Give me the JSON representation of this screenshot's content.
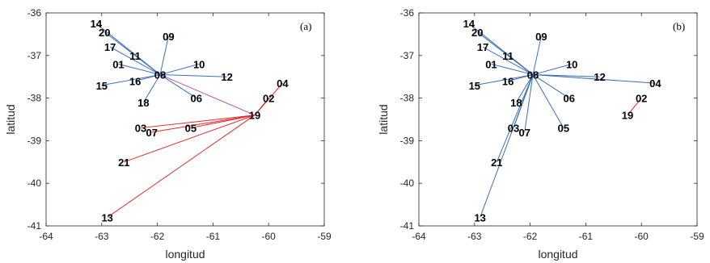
{
  "chart_data": [
    {
      "type": "scatter",
      "panel_label": "(a)",
      "xlabel": "longitud",
      "ylabel": "latitud",
      "xlim": [
        -64,
        -59
      ],
      "ylim": [
        -41,
        -36
      ],
      "xticks": [
        "-64",
        "-63",
        "-62",
        "-61",
        "-60",
        "-59"
      ],
      "yticks": [
        "-36",
        "-37",
        "-38",
        "-39",
        "-40",
        "-41"
      ],
      "colors": {
        "hub_08": "#3b6fb6",
        "hub_19": "#e8262a",
        "cross": "#b154b0"
      },
      "points": [
        {
          "id": "01",
          "x": -62.7,
          "y": -37.2
        },
        {
          "id": "02",
          "x": -60.0,
          "y": -38.0
        },
        {
          "id": "03",
          "x": -62.3,
          "y": -38.7
        },
        {
          "id": "04",
          "x": -59.75,
          "y": -37.65
        },
        {
          "id": "05",
          "x": -61.4,
          "y": -38.7
        },
        {
          "id": "06",
          "x": -61.3,
          "y": -38.0
        },
        {
          "id": "07",
          "x": -62.1,
          "y": -38.8
        },
        {
          "id": "08",
          "x": -61.95,
          "y": -37.45
        },
        {
          "id": "09",
          "x": -61.8,
          "y": -36.55
        },
        {
          "id": "10",
          "x": -61.25,
          "y": -37.2
        },
        {
          "id": "11",
          "x": -62.4,
          "y": -37.0
        },
        {
          "id": "12",
          "x": -60.75,
          "y": -37.5
        },
        {
          "id": "13",
          "x": -62.9,
          "y": -40.8
        },
        {
          "id": "14",
          "x": -63.1,
          "y": -36.25
        },
        {
          "id": "15",
          "x": -63.0,
          "y": -37.7
        },
        {
          "id": "16",
          "x": -62.4,
          "y": -37.6
        },
        {
          "id": "17",
          "x": -62.85,
          "y": -36.8
        },
        {
          "id": "18",
          "x": -62.25,
          "y": -38.1
        },
        {
          "id": "19",
          "x": -60.25,
          "y": -38.4
        },
        {
          "id": "20",
          "x": -62.95,
          "y": -36.45
        },
        {
          "id": "21",
          "x": -62.6,
          "y": -39.5
        }
      ],
      "edges": [
        {
          "from": "08",
          "to": "01",
          "group": "hub_08"
        },
        {
          "from": "08",
          "to": "06",
          "group": "hub_08"
        },
        {
          "from": "08",
          "to": "09",
          "group": "hub_08"
        },
        {
          "from": "08",
          "to": "10",
          "group": "hub_08"
        },
        {
          "from": "08",
          "to": "11",
          "group": "hub_08"
        },
        {
          "from": "08",
          "to": "12",
          "group": "hub_08"
        },
        {
          "from": "08",
          "to": "14",
          "group": "hub_08"
        },
        {
          "from": "08",
          "to": "15",
          "group": "hub_08"
        },
        {
          "from": "08",
          "to": "16",
          "group": "hub_08"
        },
        {
          "from": "08",
          "to": "17",
          "group": "hub_08"
        },
        {
          "from": "08",
          "to": "18",
          "group": "hub_08"
        },
        {
          "from": "08",
          "to": "20",
          "group": "hub_08"
        },
        {
          "from": "08",
          "to": "19",
          "group": "cross"
        },
        {
          "from": "19",
          "to": "02",
          "group": "hub_19"
        },
        {
          "from": "19",
          "to": "03",
          "group": "hub_19"
        },
        {
          "from": "19",
          "to": "04",
          "group": "hub_19"
        },
        {
          "from": "19",
          "to": "05",
          "group": "hub_19"
        },
        {
          "from": "19",
          "to": "07",
          "group": "hub_19"
        },
        {
          "from": "19",
          "to": "13",
          "group": "hub_19"
        },
        {
          "from": "19",
          "to": "21",
          "group": "hub_19"
        }
      ]
    },
    {
      "type": "scatter",
      "panel_label": "(b)",
      "xlabel": "longitud",
      "ylabel": "latitud",
      "xlim": [
        -64,
        -59
      ],
      "ylim": [
        -41,
        -36
      ],
      "xticks": [
        "-64",
        "-63",
        "-62",
        "-61",
        "-60",
        "-59"
      ],
      "yticks": [
        "-36",
        "-37",
        "-38",
        "-39",
        "-40",
        "-41"
      ],
      "colors": {
        "hub_08": "#3b6fb6",
        "hub_19": "#e8262a",
        "cross": "#b154b0"
      },
      "points": [
        {
          "id": "01",
          "x": -62.7,
          "y": -37.2
        },
        {
          "id": "02",
          "x": -60.0,
          "y": -38.0
        },
        {
          "id": "03",
          "x": -62.3,
          "y": -38.7
        },
        {
          "id": "04",
          "x": -59.75,
          "y": -37.65
        },
        {
          "id": "05",
          "x": -61.4,
          "y": -38.7
        },
        {
          "id": "06",
          "x": -61.3,
          "y": -38.0
        },
        {
          "id": "07",
          "x": -62.1,
          "y": -38.8
        },
        {
          "id": "08",
          "x": -61.95,
          "y": -37.45
        },
        {
          "id": "09",
          "x": -61.8,
          "y": -36.55
        },
        {
          "id": "10",
          "x": -61.25,
          "y": -37.2
        },
        {
          "id": "11",
          "x": -62.4,
          "y": -37.0
        },
        {
          "id": "12",
          "x": -60.75,
          "y": -37.5
        },
        {
          "id": "13",
          "x": -62.9,
          "y": -40.8
        },
        {
          "id": "14",
          "x": -63.1,
          "y": -36.25
        },
        {
          "id": "15",
          "x": -63.0,
          "y": -37.7
        },
        {
          "id": "16",
          "x": -62.4,
          "y": -37.6
        },
        {
          "id": "17",
          "x": -62.85,
          "y": -36.8
        },
        {
          "id": "18",
          "x": -62.25,
          "y": -38.1
        },
        {
          "id": "19",
          "x": -60.25,
          "y": -38.4
        },
        {
          "id": "20",
          "x": -62.95,
          "y": -36.45
        },
        {
          "id": "21",
          "x": -62.6,
          "y": -39.5
        }
      ],
      "edges": [
        {
          "from": "08",
          "to": "01",
          "group": "hub_08"
        },
        {
          "from": "08",
          "to": "03",
          "group": "hub_08"
        },
        {
          "from": "08",
          "to": "04",
          "group": "hub_08"
        },
        {
          "from": "08",
          "to": "05",
          "group": "hub_08"
        },
        {
          "from": "08",
          "to": "06",
          "group": "hub_08"
        },
        {
          "from": "08",
          "to": "07",
          "group": "hub_08"
        },
        {
          "from": "08",
          "to": "09",
          "group": "hub_08"
        },
        {
          "from": "08",
          "to": "10",
          "group": "hub_08"
        },
        {
          "from": "08",
          "to": "11",
          "group": "hub_08"
        },
        {
          "from": "08",
          "to": "12",
          "group": "hub_08"
        },
        {
          "from": "08",
          "to": "13",
          "group": "hub_08"
        },
        {
          "from": "08",
          "to": "14",
          "group": "hub_08"
        },
        {
          "from": "08",
          "to": "15",
          "group": "hub_08"
        },
        {
          "from": "08",
          "to": "16",
          "group": "hub_08"
        },
        {
          "from": "08",
          "to": "17",
          "group": "hub_08"
        },
        {
          "from": "08",
          "to": "18",
          "group": "hub_08"
        },
        {
          "from": "08",
          "to": "20",
          "group": "hub_08"
        },
        {
          "from": "08",
          "to": "21",
          "group": "hub_08"
        },
        {
          "from": "19",
          "to": "02",
          "group": "hub_19"
        }
      ]
    }
  ]
}
